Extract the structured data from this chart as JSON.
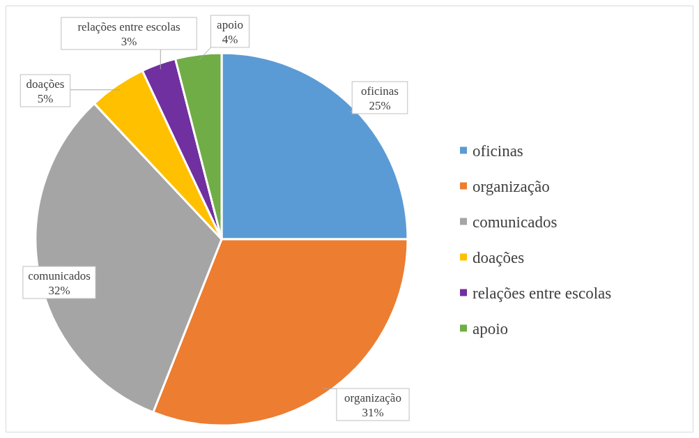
{
  "chart_data": {
    "type": "pie",
    "categories": [
      "oficinas",
      "organização",
      "comunicados",
      "doações",
      "relações entre escolas",
      "apoio"
    ],
    "values": [
      25,
      31,
      32,
      5,
      3,
      4
    ],
    "colors": [
      "#5b9bd5",
      "#ed7d31",
      "#a5a5a5",
      "#ffc000",
      "#7030a0",
      "#70ad47"
    ],
    "value_labels": [
      "25%",
      "31%",
      "32%",
      "5%",
      "3%",
      "4%"
    ],
    "legend": "right"
  }
}
